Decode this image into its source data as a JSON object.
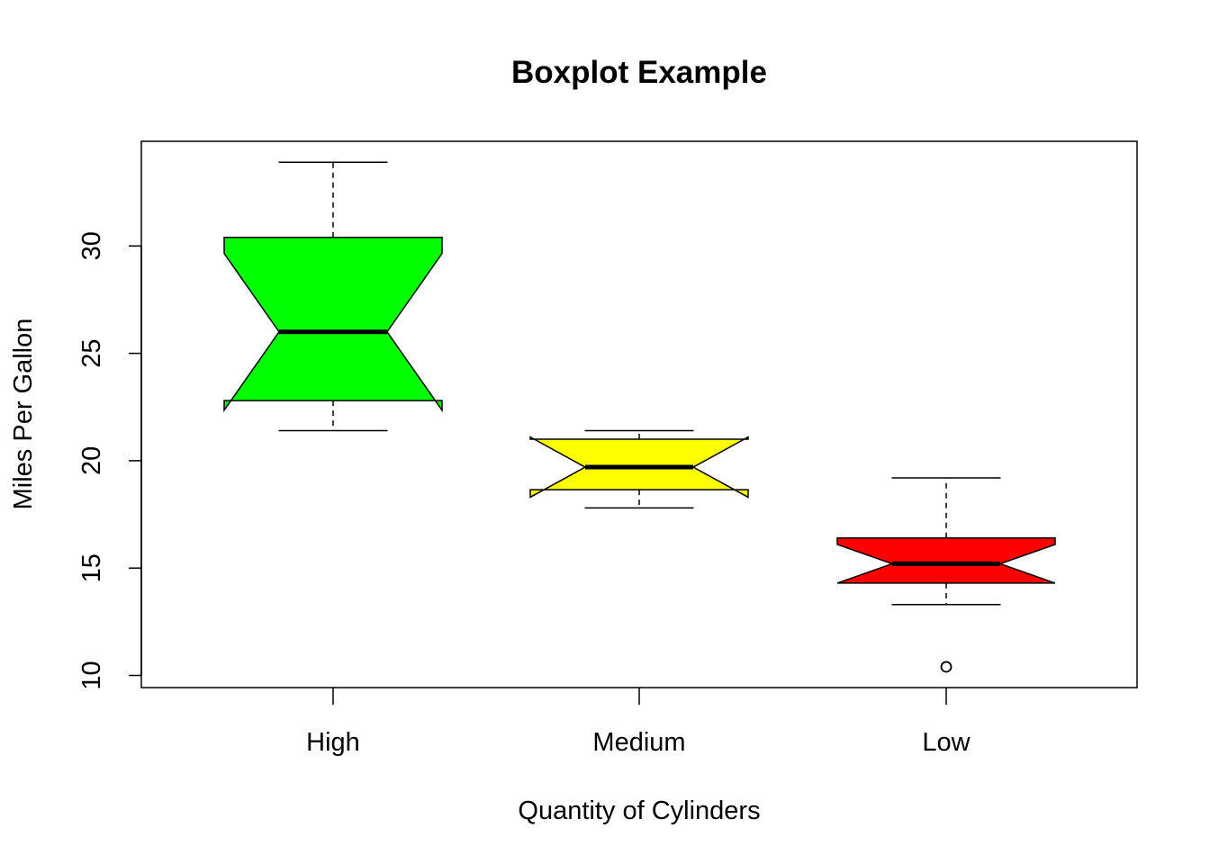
{
  "chart_data": {
    "type": "boxplot",
    "title": "Boxplot Example",
    "xlabel": "Quantity of Cylinders",
    "ylabel": "Miles Per Gallon",
    "notched": true,
    "ylim": [
      9.5,
      35
    ],
    "yticks": [
      "10",
      "15",
      "20",
      "25",
      "30"
    ],
    "categories": [
      "High",
      "Medium",
      "Low"
    ],
    "series": [
      {
        "category": "High",
        "color": "#00ff00",
        "whisker_low": 21.4,
        "q1": 22.8,
        "median": 26.0,
        "q3": 30.4,
        "whisker_high": 33.9,
        "notch_low": 22.35,
        "notch_high": 29.65,
        "outliers": []
      },
      {
        "category": "Medium",
        "color": "#ffff00",
        "whisker_low": 17.8,
        "q1": 18.65,
        "median": 19.7,
        "q3": 21.0,
        "whisker_high": 21.4,
        "notch_low": 18.3,
        "notch_high": 21.1,
        "outliers": []
      },
      {
        "category": "Low",
        "color": "#ff0000",
        "whisker_low": 13.3,
        "q1": 14.3,
        "median": 15.2,
        "q3": 16.4,
        "whisker_high": 19.2,
        "notch_low": 14.3,
        "notch_high": 16.1,
        "outliers": [
          10.4
        ]
      }
    ],
    "grid": false,
    "legend": "none"
  }
}
